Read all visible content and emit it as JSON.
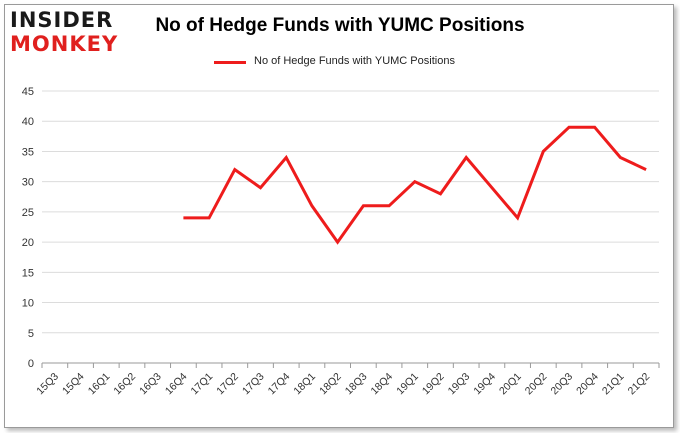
{
  "header": {
    "logo_line1": "INSIDER",
    "logo_line2": "MONKEY",
    "title": "No of Hedge Funds with YUMC Positions"
  },
  "chart_data": {
    "type": "line",
    "title": "No of Hedge Funds with YUMC Positions",
    "xlabel": "",
    "ylabel": "",
    "ylim": [
      0,
      45
    ],
    "yticks": [
      0,
      5,
      10,
      15,
      20,
      25,
      30,
      35,
      40,
      45
    ],
    "grid": true,
    "legend_position": "top-center",
    "categories": [
      "15Q3",
      "15Q4",
      "16Q1",
      "16Q2",
      "16Q3",
      "16Q4",
      "17Q1",
      "17Q2",
      "17Q3",
      "17Q4",
      "18Q1",
      "18Q2",
      "18Q3",
      "18Q4",
      "19Q1",
      "19Q2",
      "19Q3",
      "19Q4",
      "20Q1",
      "20Q2",
      "20Q3",
      "20Q4",
      "21Q1",
      "21Q2"
    ],
    "series": [
      {
        "name": "No of Hedge Funds with YUMC  Positions",
        "color": "#ee1c1c",
        "values": [
          null,
          null,
          null,
          null,
          null,
          24,
          24,
          32,
          29,
          34,
          26,
          20,
          26,
          26,
          30,
          28,
          34,
          29,
          24,
          35,
          39,
          39,
          34,
          32
        ]
      }
    ]
  }
}
